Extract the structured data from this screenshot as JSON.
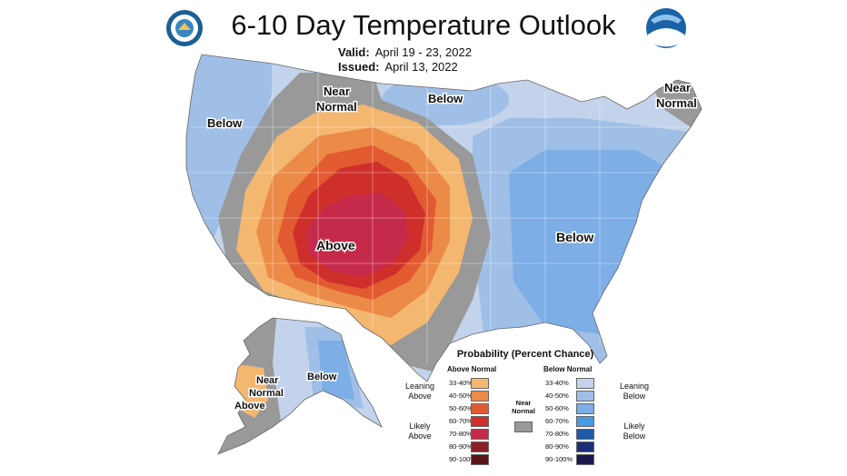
{
  "title": "6-10 Day Temperature Outlook",
  "valid_label": "Valid:",
  "valid_value": "April 19 - 23, 2022",
  "issued_label": "Issued:",
  "issued_value": "April 13, 2022",
  "logos": {
    "left": "department-of-commerce-seal",
    "right": "noaa-logo"
  },
  "map_labels": {
    "below_west": "Below",
    "near_normal_center_1": "Near",
    "near_normal_center_2": "Normal",
    "below_north": "Below",
    "near_normal_ne_1": "Near",
    "near_normal_ne_2": "Normal",
    "above_center": "Above",
    "below_east": "Below",
    "ak_below": "Below",
    "ak_near_1": "Near",
    "ak_near_2": "Normal",
    "ak_above": "Above"
  },
  "legend": {
    "title": "Probability (Percent Chance)",
    "above_header": "Above Normal",
    "below_header": "Below Normal",
    "leaning_above": "Leaning Above",
    "likely_above": "Likely Above",
    "leaning_below": "Leaning Below",
    "likely_below": "Likely Below",
    "near_normal": "Near Normal",
    "near_normal_color": "#999999",
    "above": [
      {
        "range": "33-40%",
        "color": "#f4b770"
      },
      {
        "range": "40-50%",
        "color": "#ec8a48"
      },
      {
        "range": "50-60%",
        "color": "#e25a30"
      },
      {
        "range": "60-70%",
        "color": "#cf2f2b"
      },
      {
        "range": "70-80%",
        "color": "#c62a4a"
      },
      {
        "range": "80-90%",
        "color": "#8c2028"
      },
      {
        "range": "90-100%",
        "color": "#5c1414"
      }
    ],
    "below": [
      {
        "range": "33-40%",
        "color": "#c3d3ec"
      },
      {
        "range": "40-50%",
        "color": "#9fbfe6"
      },
      {
        "range": "50-60%",
        "color": "#7daee6"
      },
      {
        "range": "60-70%",
        "color": "#4a9be0"
      },
      {
        "range": "70-80%",
        "color": "#1e5aa8"
      },
      {
        "range": "80-90%",
        "color": "#1c2e7a"
      },
      {
        "range": "90-100%",
        "color": "#1a1a4e"
      }
    ]
  }
}
